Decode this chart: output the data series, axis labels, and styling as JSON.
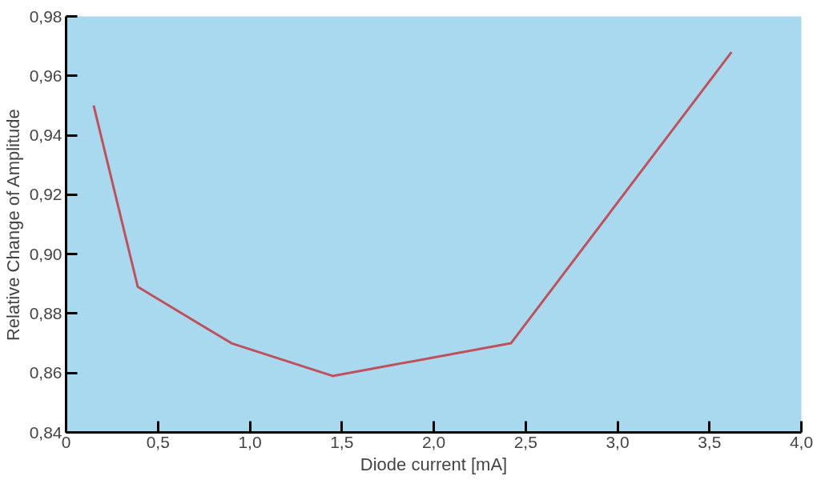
{
  "chart_data": {
    "type": "line",
    "xlabel": "Diode current [mA]",
    "ylabel": "Relative Change of Amplitude",
    "x": [
      0.15,
      0.39,
      0.9,
      1.45,
      2.42,
      3.62
    ],
    "series": [
      {
        "color": "#c0505a",
        "values": [
          0.95,
          0.889,
          0.87,
          0.859,
          0.87,
          0.968
        ]
      }
    ],
    "xlim": [
      0,
      4
    ],
    "ylim": [
      0.84,
      0.98
    ],
    "xticks": [
      0,
      {
        "value": 0.5,
        "label": "0,5"
      },
      {
        "value": 1.0,
        "label": "1,0"
      },
      {
        "value": 1.5,
        "label": "1,5"
      },
      {
        "value": 2.0,
        "label": "2,0"
      },
      {
        "value": 2.5,
        "label": "2,5"
      },
      {
        "value": 3.0,
        "label": "3,0"
      },
      {
        "value": 3.5,
        "label": "3,5"
      },
      {
        "value": 4.0,
        "label": "4,0"
      }
    ],
    "yticks": [
      {
        "value": 0.84,
        "label": "0,84"
      },
      {
        "value": 0.86,
        "label": "0,86"
      },
      {
        "value": 0.88,
        "label": "0,88"
      },
      {
        "value": 0.9,
        "label": "0,90"
      },
      {
        "value": 0.92,
        "label": "0,92"
      },
      {
        "value": 0.94,
        "label": "0,94"
      },
      {
        "value": 0.96,
        "label": "0,96"
      },
      {
        "value": 0.98,
        "label": "0,98"
      }
    ],
    "grid": false,
    "marker": "none",
    "line_style": "solid"
  }
}
